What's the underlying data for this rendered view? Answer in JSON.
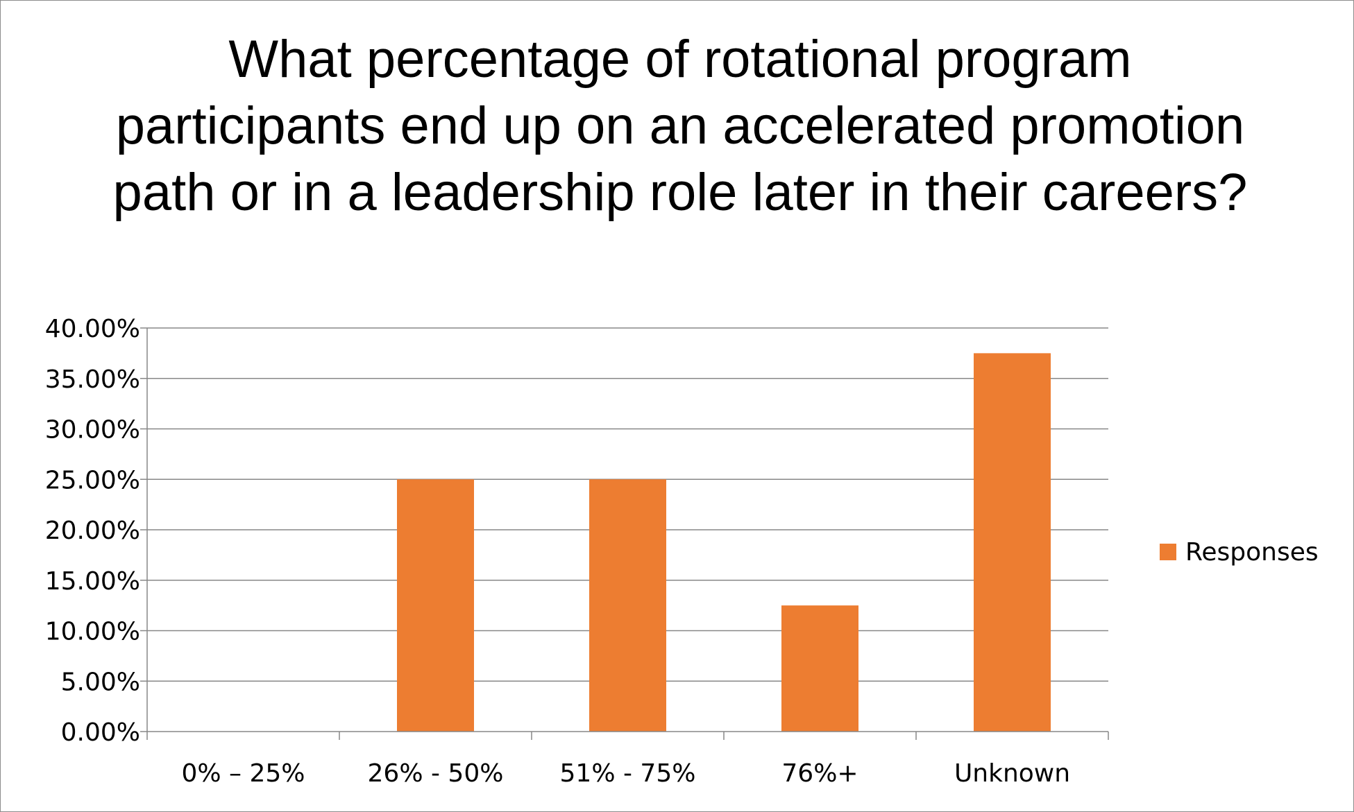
{
  "chart_data": {
    "type": "bar",
    "title": "What percentage of rotational program participants end up on an accelerated promotion path or in a leadership role later in their careers?",
    "categories": [
      "0% – 25%",
      "26% - 50%",
      "51% - 75%",
      "76%+",
      "Unknown"
    ],
    "series": [
      {
        "name": "Responses",
        "values": [
          0,
          25,
          25,
          12.5,
          37.5
        ],
        "color": "#ED7D31"
      }
    ],
    "ylim": [
      0,
      40
    ],
    "ytick_step": 5,
    "ytick_labels": [
      "0.00%",
      "5.00%",
      "10.00%",
      "15.00%",
      "20.00%",
      "25.00%",
      "30.00%",
      "35.00%",
      "40.00%"
    ],
    "xlabel": "",
    "ylabel": "",
    "grid": true,
    "grid_color": "#878787",
    "legend_position": "right"
  }
}
